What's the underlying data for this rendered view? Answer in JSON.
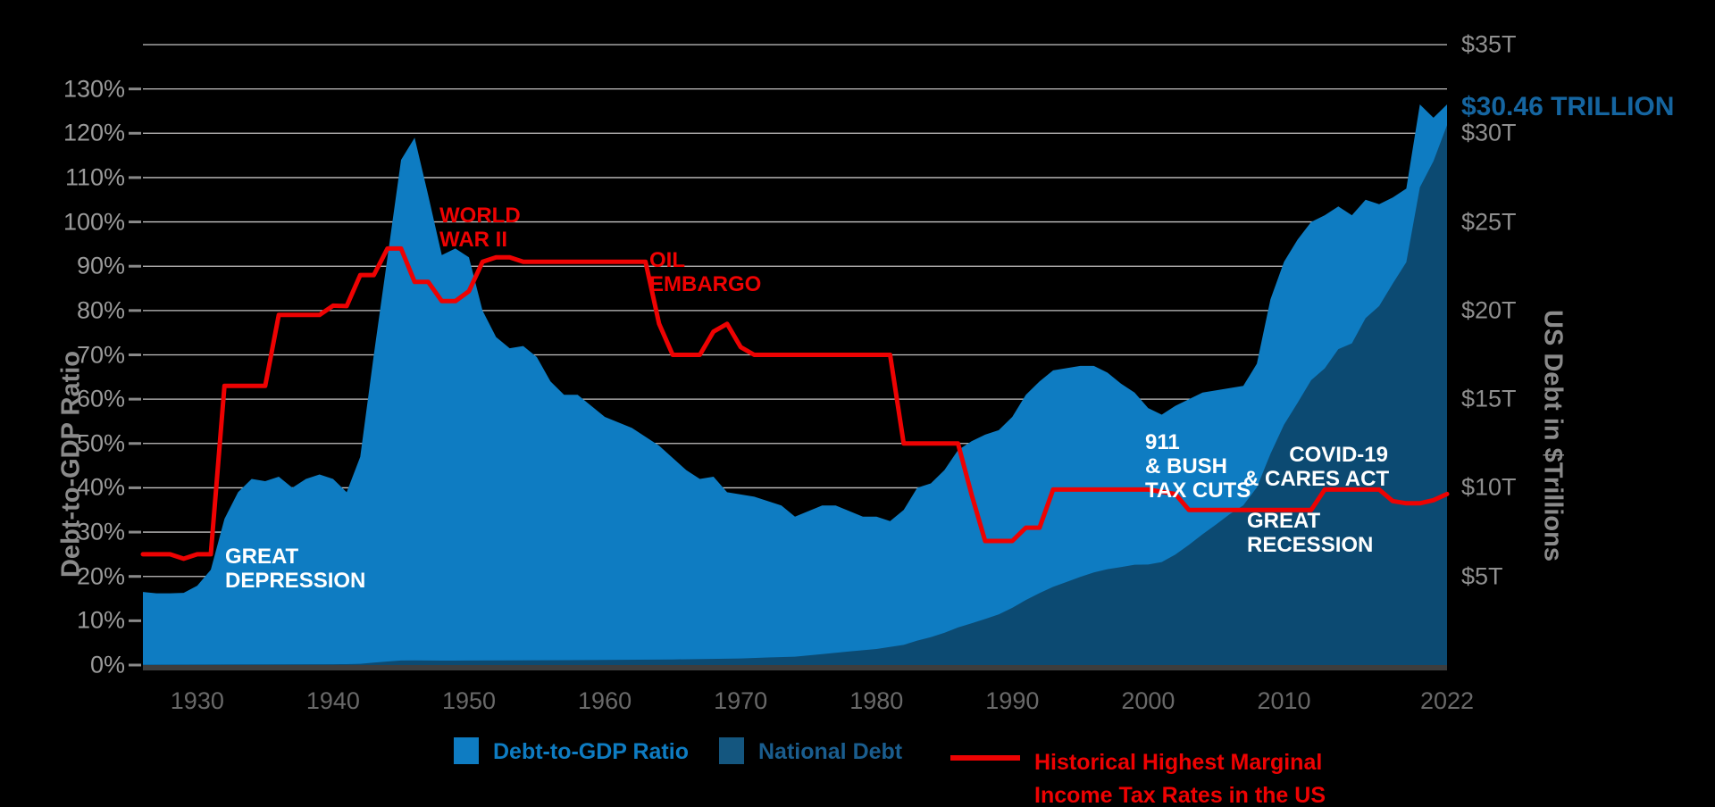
{
  "chart_data": {
    "type": "area",
    "title": "",
    "x_axis": {
      "range": [
        1926,
        2022
      ],
      "ticks": [
        1930,
        1940,
        1950,
        1960,
        1970,
        1980,
        1990,
        2000,
        2010,
        2022
      ]
    },
    "left_axis": {
      "label": "Debt-to-GDP Ratio",
      "range_pct": [
        0,
        140
      ],
      "tick_step_pct": 10,
      "tick_labels": [
        "0%",
        "10%",
        "20%",
        "30%",
        "40%",
        "50%",
        "60%",
        "70%",
        "80%",
        "90%",
        "100%",
        "110%",
        "120%",
        "130%"
      ]
    },
    "right_axis": {
      "label": "US Debt in $Trillions",
      "range_trillions": [
        0,
        35
      ],
      "tick_values_trillions": [
        5,
        10,
        15,
        20,
        25,
        30,
        35
      ],
      "tick_labels": [
        "$5T",
        "$10T",
        "$15T",
        "$20T",
        "$25T",
        "$30T",
        "$35T"
      ]
    },
    "grid": {
      "line_color": "#c4c3c3",
      "axis_line_color": "#3d3d3d",
      "tick_dash_color": "#8a8a8a"
    },
    "series": [
      {
        "name": "Debt-to-GDP Ratio",
        "type": "area",
        "axis": "left",
        "color": "#0e7cc2",
        "points": [
          [
            1926,
            16.5
          ],
          [
            1927,
            16.2
          ],
          [
            1928,
            16.2
          ],
          [
            1929,
            16.3
          ],
          [
            1930,
            17.9
          ],
          [
            1931,
            21.5
          ],
          [
            1932,
            33
          ],
          [
            1933,
            39
          ],
          [
            1934,
            42
          ],
          [
            1935,
            41.5
          ],
          [
            1936,
            42.5
          ],
          [
            1937,
            40
          ],
          [
            1938,
            42
          ],
          [
            1939,
            43
          ],
          [
            1940,
            42
          ],
          [
            1941,
            39
          ],
          [
            1942,
            47
          ],
          [
            1943,
            70
          ],
          [
            1944,
            92
          ],
          [
            1945,
            114
          ],
          [
            1946,
            119
          ],
          [
            1947,
            106
          ],
          [
            1948,
            92.5
          ],
          [
            1949,
            94
          ],
          [
            1950,
            92
          ],
          [
            1951,
            80
          ],
          [
            1952,
            74
          ],
          [
            1953,
            71.5
          ],
          [
            1954,
            72
          ],
          [
            1955,
            69.5
          ],
          [
            1956,
            64
          ],
          [
            1957,
            61
          ],
          [
            1958,
            61
          ],
          [
            1959,
            58.5
          ],
          [
            1960,
            56
          ],
          [
            1962,
            53.5
          ],
          [
            1964,
            49.5
          ],
          [
            1966,
            44
          ],
          [
            1967,
            42
          ],
          [
            1968,
            42.5
          ],
          [
            1969,
            39
          ],
          [
            1971,
            38
          ],
          [
            1973,
            36
          ],
          [
            1974,
            33.5
          ],
          [
            1976,
            36
          ],
          [
            1977,
            36
          ],
          [
            1979,
            33.5
          ],
          [
            1980,
            33.5
          ],
          [
            1981,
            32.5
          ],
          [
            1982,
            35
          ],
          [
            1983,
            40
          ],
          [
            1984,
            41
          ],
          [
            1985,
            44
          ],
          [
            1986,
            48.5
          ],
          [
            1987,
            50.5
          ],
          [
            1988,
            52
          ],
          [
            1989,
            53
          ],
          [
            1990,
            56
          ],
          [
            1991,
            61
          ],
          [
            1992,
            64
          ],
          [
            1993,
            66.5
          ],
          [
            1995,
            67.5
          ],
          [
            1996,
            67.5
          ],
          [
            1997,
            66
          ],
          [
            1998,
            63.5
          ],
          [
            1999,
            61.5
          ],
          [
            2000,
            58
          ],
          [
            2001,
            56.5
          ],
          [
            2002,
            58.5
          ],
          [
            2004,
            61.5
          ],
          [
            2007,
            63
          ],
          [
            2008,
            68
          ],
          [
            2009,
            82.5
          ],
          [
            2010,
            91
          ],
          [
            2011,
            96
          ],
          [
            2012,
            100
          ],
          [
            2013,
            101.5
          ],
          [
            2014,
            103.5
          ],
          [
            2015,
            101.5
          ],
          [
            2016,
            105
          ],
          [
            2017,
            104
          ],
          [
            2018,
            105.5
          ],
          [
            2019,
            107.5
          ],
          [
            2020,
            126.5
          ],
          [
            2021,
            123.5
          ],
          [
            2022,
            126.5
          ]
        ]
      },
      {
        "name": "National Debt",
        "type": "area",
        "axis": "right",
        "color": "#0c4a72",
        "points": [
          [
            1926,
            0.019
          ],
          [
            1940,
            0.043
          ],
          [
            1941,
            0.049
          ],
          [
            1942,
            0.072
          ],
          [
            1943,
            0.137
          ],
          [
            1944,
            0.201
          ],
          [
            1945,
            0.259
          ],
          [
            1946,
            0.269
          ],
          [
            1948,
            0.252
          ],
          [
            1950,
            0.257
          ],
          [
            1955,
            0.274
          ],
          [
            1960,
            0.286
          ],
          [
            1965,
            0.317
          ],
          [
            1970,
            0.371
          ],
          [
            1972,
            0.427
          ],
          [
            1974,
            0.475
          ],
          [
            1976,
            0.62
          ],
          [
            1978,
            0.772
          ],
          [
            1980,
            0.908
          ],
          [
            1982,
            1.14
          ],
          [
            1983,
            1.38
          ],
          [
            1984,
            1.57
          ],
          [
            1985,
            1.82
          ],
          [
            1986,
            2.12
          ],
          [
            1987,
            2.35
          ],
          [
            1988,
            2.6
          ],
          [
            1989,
            2.86
          ],
          [
            1990,
            3.23
          ],
          [
            1991,
            3.67
          ],
          [
            1992,
            4.06
          ],
          [
            1993,
            4.41
          ],
          [
            1994,
            4.69
          ],
          [
            1995,
            4.97
          ],
          [
            1996,
            5.22
          ],
          [
            1997,
            5.41
          ],
          [
            1998,
            5.53
          ],
          [
            1999,
            5.66
          ],
          [
            2000,
            5.67
          ],
          [
            2001,
            5.81
          ],
          [
            2002,
            6.23
          ],
          [
            2003,
            6.78
          ],
          [
            2004,
            7.38
          ],
          [
            2005,
            7.93
          ],
          [
            2006,
            8.51
          ],
          [
            2007,
            9.01
          ],
          [
            2008,
            10.02
          ],
          [
            2009,
            11.91
          ],
          [
            2010,
            13.56
          ],
          [
            2011,
            14.79
          ],
          [
            2012,
            16.07
          ],
          [
            2013,
            16.74
          ],
          [
            2014,
            17.82
          ],
          [
            2015,
            18.15
          ],
          [
            2016,
            19.57
          ],
          [
            2017,
            20.25
          ],
          [
            2018,
            21.52
          ],
          [
            2019,
            22.72
          ],
          [
            2020,
            26.95
          ],
          [
            2021,
            28.43
          ],
          [
            2022,
            30.46
          ]
        ]
      },
      {
        "name": "Historical Highest Marginal Income Tax Rates in the US",
        "type": "line",
        "axis": "left",
        "color": "#ee0202",
        "stroke_width": 5,
        "points": [
          [
            1926,
            25
          ],
          [
            1928,
            25
          ],
          [
            1929,
            24
          ],
          [
            1930,
            25
          ],
          [
            1931,
            25
          ],
          [
            1932,
            63
          ],
          [
            1935,
            63
          ],
          [
            1936,
            79
          ],
          [
            1939,
            79
          ],
          [
            1940,
            81.1
          ],
          [
            1941,
            81
          ],
          [
            1942,
            88
          ],
          [
            1943,
            88
          ],
          [
            1944,
            94
          ],
          [
            1945,
            94
          ],
          [
            1946,
            86.45
          ],
          [
            1947,
            86.45
          ],
          [
            1948,
            82.13
          ],
          [
            1949,
            82.13
          ],
          [
            1950,
            84.36
          ],
          [
            1951,
            91
          ],
          [
            1952,
            92
          ],
          [
            1953,
            92
          ],
          [
            1954,
            91
          ],
          [
            1963,
            91
          ],
          [
            1964,
            77
          ],
          [
            1965,
            70
          ],
          [
            1967,
            70
          ],
          [
            1968,
            75.25
          ],
          [
            1969,
            77
          ],
          [
            1970,
            71.75
          ],
          [
            1971,
            70
          ],
          [
            1981,
            70
          ],
          [
            1982,
            50
          ],
          [
            1986,
            50
          ],
          [
            1987,
            38.5
          ],
          [
            1988,
            28
          ],
          [
            1990,
            28
          ],
          [
            1991,
            31
          ],
          [
            1992,
            31
          ],
          [
            1993,
            39.6
          ],
          [
            2000,
            39.6
          ],
          [
            2001,
            39.1
          ],
          [
            2002,
            38.6
          ],
          [
            2003,
            35
          ],
          [
            2012,
            35
          ],
          [
            2013,
            39.6
          ],
          [
            2017,
            39.6
          ],
          [
            2018,
            37
          ],
          [
            2019,
            36.5
          ],
          [
            2020,
            36.5
          ],
          [
            2021,
            37.2
          ],
          [
            2022,
            38.6
          ]
        ]
      }
    ]
  },
  "annotations": {
    "great_depression": {
      "line1": "GREAT",
      "line2": "DEPRESSION"
    },
    "world_war_ii": {
      "line1": "WORLD",
      "line2": "WAR II"
    },
    "oil_embargo": {
      "line1": "OIL",
      "line2": "EMBARGO"
    },
    "bush_tax_cuts": {
      "line1": "911",
      "line2": "& BUSH",
      "line3": "TAX CUTS"
    },
    "great_recession": {
      "line1": "GREAT",
      "line2": "RECESSION"
    },
    "covid_cares": {
      "line1": "COVID-19",
      "line2": "& CARES ACT"
    }
  },
  "callout": {
    "text": "$30.46 TRILLION",
    "color": "#1565a0"
  },
  "legend": {
    "items": [
      {
        "label": "Debt-to-GDP Ratio",
        "swatch_color": "#0e7cc2",
        "text_color": "#0e7cc2",
        "swatch": "square"
      },
      {
        "label": "National Debt",
        "swatch_color": "#14567f",
        "text_color": "#1a5d8e",
        "swatch": "square"
      },
      {
        "label_line1": "Historical Highest Marginal",
        "label_line2": "Income Tax Rates in the US",
        "swatch_color": "#ee0202",
        "text_color": "#ee0202",
        "swatch": "line"
      }
    ]
  }
}
